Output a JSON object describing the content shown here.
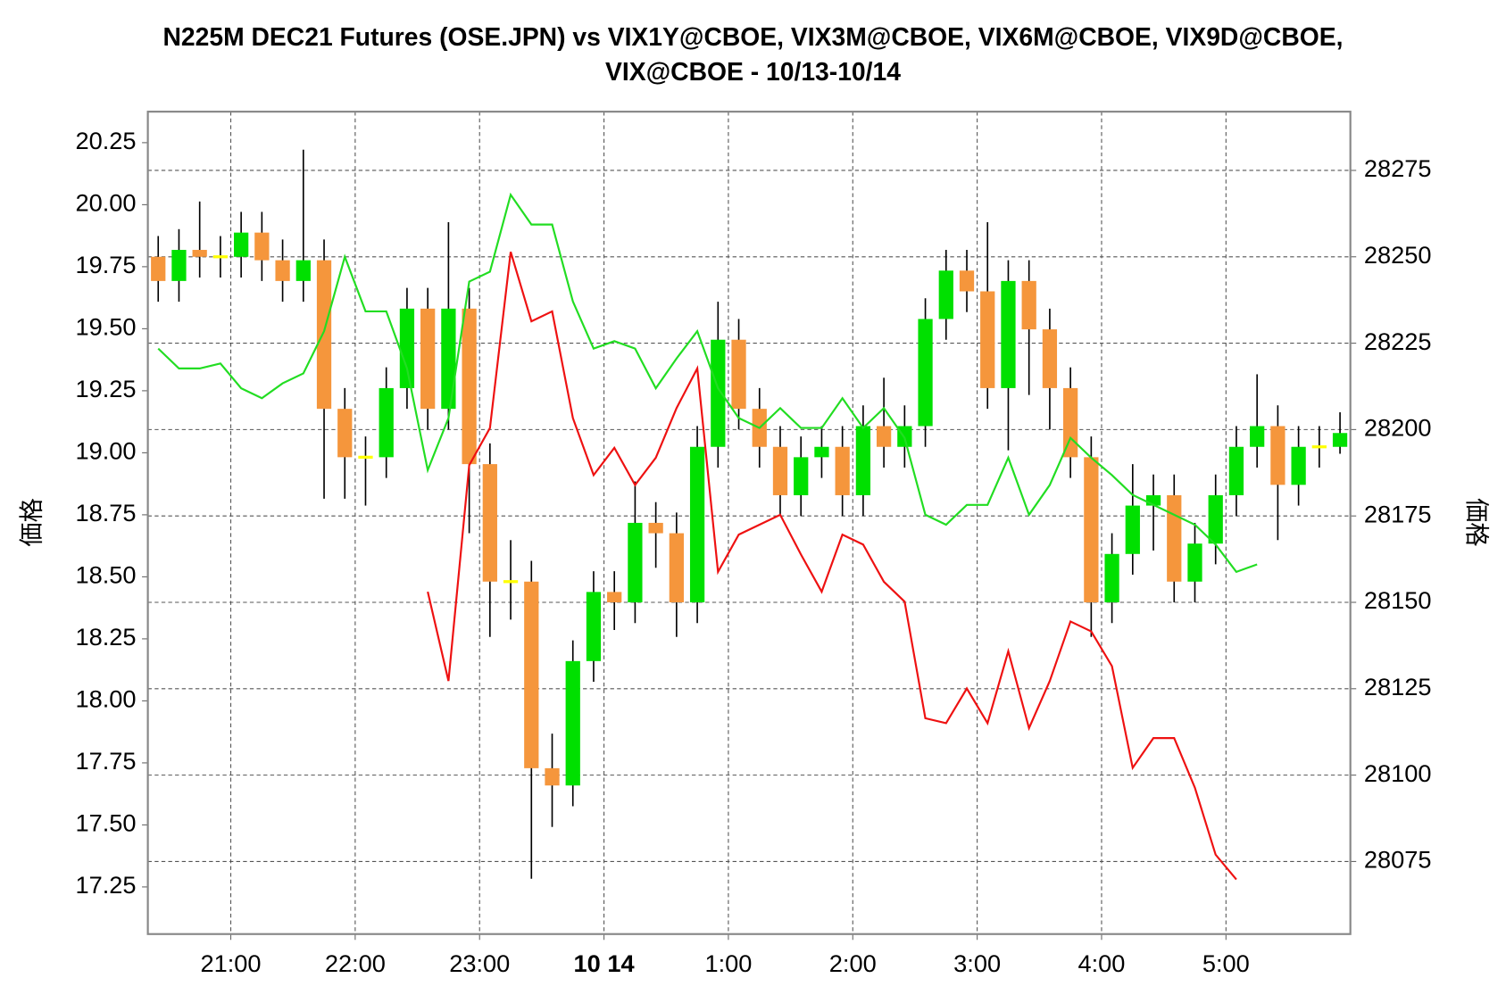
{
  "chart_data": {
    "type": "candlestick",
    "title": [
      "N225M DEC21 Futures (OSE.JPN) vs VIX1Y@CBOE, VIX3M@CBOE, VIX6M@CBOE, VIX9D@CBOE,",
      "VIX@CBOE - 10/13-10/14"
    ],
    "y_label": "価格",
    "y2_label": "価格",
    "x": [
      "20:20",
      "20:30",
      "20:40",
      "20:50",
      "21:00",
      "21:10",
      "21:20",
      "21:30",
      "21:40",
      "21:50",
      "22:00",
      "22:10",
      "22:20",
      "22:30",
      "22:40",
      "22:50",
      "23:00",
      "23:10",
      "23:20",
      "23:30",
      "23:40",
      "23:50",
      "0:00",
      "0:10",
      "0:20",
      "0:30",
      "0:40",
      "0:50",
      "1:00",
      "1:10",
      "1:20",
      "1:30",
      "1:40",
      "1:50",
      "2:00",
      "2:10",
      "2:20",
      "2:30",
      "2:40",
      "2:50",
      "3:00",
      "3:10",
      "3:20",
      "3:30",
      "3:40",
      "3:50",
      "4:00",
      "4:10",
      "4:20",
      "4:30",
      "4:40",
      "4:50",
      "5:00",
      "5:10",
      "5:20",
      "5:30",
      "5:40",
      "5:50"
    ],
    "xticks": [
      "21:00",
      "22:00",
      "23:00",
      {
        "value": "0:00",
        "label": "10 14"
      },
      "1:00",
      "2:00",
      "3:00",
      "4:00",
      "5:00"
    ],
    "ylim": [
      17.06,
      20.375
    ],
    "yticks": [
      17.25,
      {
        "value": 17.5,
        "label": "17.50"
      },
      17.75,
      {
        "value": 18,
        "label": "18.00"
      },
      18.25,
      {
        "value": 18.5,
        "label": "18.50"
      },
      18.75,
      {
        "value": 19,
        "label": "19.00"
      },
      19.25,
      {
        "value": 19.5,
        "label": "19.50"
      },
      19.75,
      {
        "value": 20,
        "label": "20.00"
      },
      20.25
    ],
    "y2lim": [
      28054,
      28292
    ],
    "y2ticks": [
      28075,
      28100,
      28125,
      28150,
      28175,
      28200,
      28225,
      28250,
      28275
    ],
    "grid": true,
    "candles": {
      "axis": "y2",
      "up_color": "#00e000",
      "down_color": "#f5963c",
      "flat_color": "#ffff00",
      "open": [
        28250,
        28243,
        28252,
        28250,
        28250,
        28257,
        28249,
        28243,
        28249,
        28206,
        28192,
        28192,
        28212,
        28235,
        28206,
        28235,
        28190,
        28156,
        28156,
        28102,
        28097,
        28133,
        28153,
        28150,
        28173,
        28170,
        28150,
        28195,
        28226,
        28206,
        28195,
        28181,
        28192,
        28195,
        28181,
        28201,
        28195,
        28201,
        28232,
        28246,
        28240,
        28212,
        28243,
        28229,
        28212,
        28192,
        28150,
        28164,
        28178,
        28181,
        28156,
        28167,
        28181,
        28195,
        28201,
        28184,
        28195,
        28195
      ],
      "high": [
        28256,
        28258,
        28266,
        28256,
        28263,
        28263,
        28255,
        28281,
        28255,
        28212,
        28198,
        28218,
        28241,
        28241,
        28260,
        28241,
        28196,
        28168,
        28162,
        28112,
        28139,
        28159,
        28159,
        28185,
        28179,
        28176,
        28201,
        28237,
        28232,
        28212,
        28201,
        28198,
        28201,
        28201,
        28207,
        28215,
        28207,
        28238,
        28252,
        28252,
        28260,
        28249,
        28249,
        28235,
        28218,
        28198,
        28170,
        28190,
        28187,
        28187,
        28173,
        28187,
        28201,
        28216,
        28207,
        28201,
        28201,
        28205
      ],
      "low": [
        28237,
        28237,
        28244,
        28244,
        28244,
        28243,
        28237,
        28237,
        28180,
        28180,
        28178,
        28186,
        28206,
        28200,
        28200,
        28170,
        28140,
        28145,
        28070,
        28085,
        28091,
        28127,
        28142,
        28144,
        28160,
        28140,
        28144,
        28189,
        28200,
        28189,
        28175,
        28175,
        28186,
        28175,
        28175,
        28189,
        28189,
        28195,
        28226,
        28234,
        28206,
        28194,
        28210,
        28200,
        28186,
        28140,
        28144,
        28158,
        28165,
        28150,
        28150,
        28161,
        28175,
        28189,
        28168,
        28178,
        28189,
        28193
      ],
      "close": [
        28243,
        28252,
        28250,
        28250,
        28257,
        28249,
        28243,
        28249,
        28206,
        28192,
        28192,
        28212,
        28235,
        28206,
        28235,
        28190,
        28156,
        28156,
        28102,
        28097,
        28133,
        28153,
        28150,
        28173,
        28170,
        28150,
        28195,
        28226,
        28206,
        28195,
        28181,
        28192,
        28195,
        28181,
        28201,
        28195,
        28201,
        28232,
        28246,
        28240,
        28212,
        28243,
        28229,
        28212,
        28192,
        28150,
        28164,
        28178,
        28181,
        28156,
        28167,
        28181,
        28195,
        28201,
        28184,
        28195,
        28195,
        28199
      ]
    },
    "series": [
      {
        "color": "#22dd22",
        "values": [
          19.42,
          19.34,
          19.34,
          19.36,
          19.26,
          19.22,
          19.28,
          19.32,
          19.49,
          19.79,
          19.57,
          19.57,
          19.34,
          18.93,
          19.14,
          19.69,
          19.73,
          20.04,
          19.92,
          19.92,
          19.61,
          19.42,
          19.45,
          19.42,
          19.26,
          19.38,
          19.49,
          19.26,
          19.14,
          19.1,
          19.18,
          19.1,
          19.1,
          19.22,
          19.1,
          19.18,
          19.06,
          18.75,
          18.71,
          18.79,
          18.79,
          18.98,
          18.75,
          18.87,
          19.06,
          18.98,
          18.91,
          18.83,
          18.79,
          18.75,
          18.71,
          18.63,
          18.52,
          18.55,
          null,
          null,
          null,
          null
        ]
      },
      {
        "color": "#ee1111",
        "values": [
          null,
          null,
          null,
          null,
          null,
          null,
          null,
          null,
          null,
          null,
          null,
          null,
          null,
          18.44,
          18.08,
          18.95,
          19.1,
          19.81,
          19.53,
          19.57,
          19.14,
          18.91,
          19.02,
          18.87,
          18.98,
          19.18,
          19.34,
          18.52,
          18.67,
          18.71,
          18.75,
          18.59,
          18.44,
          18.67,
          18.63,
          18.48,
          18.4,
          17.93,
          17.91,
          18.05,
          17.91,
          18.2,
          17.89,
          18.08,
          18.32,
          18.28,
          18.14,
          17.73,
          17.85,
          17.85,
          17.65,
          17.38,
          17.28,
          null,
          null,
          null,
          null,
          null
        ]
      }
    ]
  }
}
